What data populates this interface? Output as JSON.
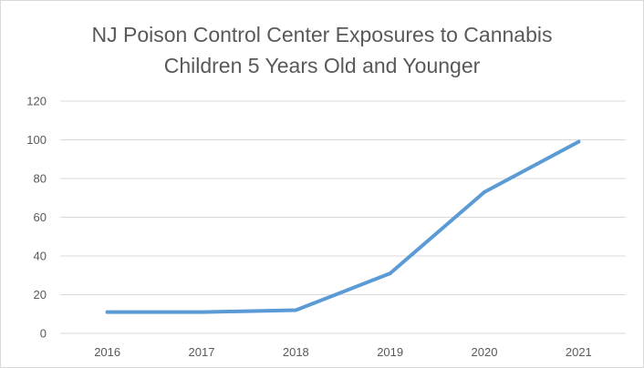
{
  "chart_data": {
    "type": "line",
    "title": [
      "NJ Poison Control Center Exposures to Cannabis",
      "Children 5 Years Old and Younger"
    ],
    "xlabel": "",
    "ylabel": "",
    "categories": [
      "2016",
      "2017",
      "2018",
      "2019",
      "2020",
      "2021"
    ],
    "series": [
      {
        "values": [
          11,
          11,
          12,
          31,
          73,
          99
        ]
      }
    ],
    "ylim": [
      0,
      120
    ],
    "yticks": [
      0,
      20,
      40,
      60,
      80,
      100,
      120
    ],
    "ytick_labels": [
      "0",
      "20",
      "40",
      "60",
      "80",
      "100",
      "120"
    ],
    "grid": true,
    "legend": "none",
    "line_color": "#5b9bd5",
    "grid_color": "#d9d9d9"
  }
}
